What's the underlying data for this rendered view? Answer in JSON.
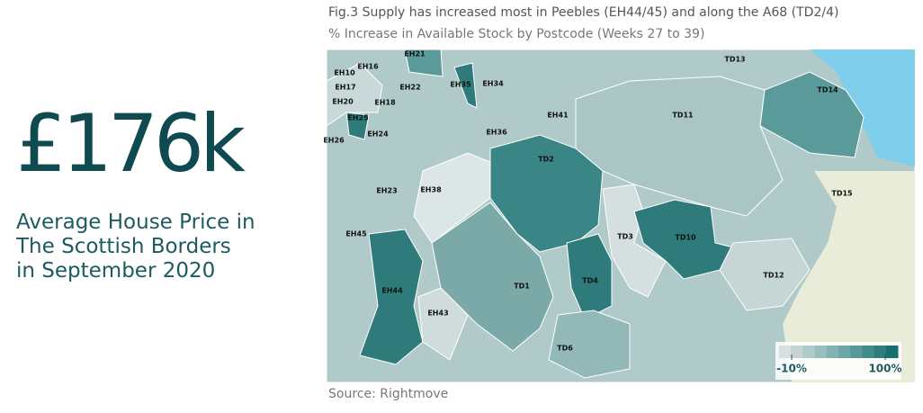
{
  "headline": {
    "value": "£176k",
    "caption": [
      "Average House Price in",
      "The Scottish Borders",
      "in September 2020"
    ]
  },
  "figure": {
    "title": "Fig.3 Supply has increased most in Peebles (EH44/45) and along the A68 (TD2/4)",
    "subtitle": "% Increase in Available Stock by Postcode (Weeks 27 to 39)",
    "source": "Source: Rightmove"
  },
  "map": {
    "labels": [
      "EH21",
      "TD13",
      "EH10",
      "EH16",
      "EH35",
      "EH34",
      "EH17",
      "EH22",
      "TD14",
      "EH20",
      "EH18",
      "TD11",
      "EH41",
      "EH25",
      "EH24",
      "EH36",
      "EH26",
      "TD2",
      "EH23",
      "EH38",
      "TD15",
      "EH45",
      "TD3",
      "TD10",
      "EH44",
      "TD1",
      "TD4",
      "TD12",
      "EH43",
      "TD6"
    ],
    "legend": {
      "colors": [
        "#d9dede",
        "#c4d3d3",
        "#aecaca",
        "#98bfbf",
        "#82b3b3",
        "#6ca6a6",
        "#579999",
        "#418b8b",
        "#2d7d7d",
        "#1a6f70"
      ],
      "ticks": [
        {
          "value": -10,
          "label": "-10%"
        },
        {
          "value": 100,
          "label": "100%"
        }
      ]
    }
  }
}
